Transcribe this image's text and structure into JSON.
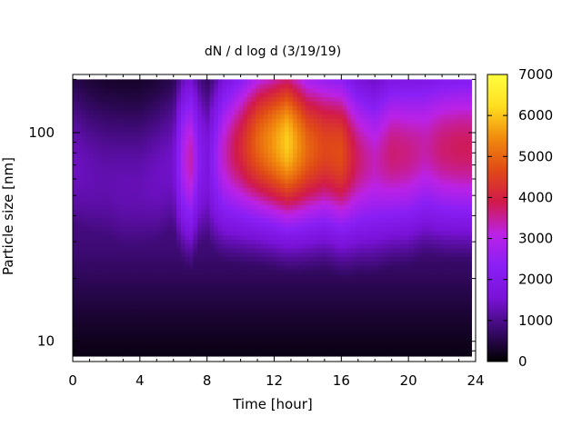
{
  "chart_data": {
    "type": "heatmap",
    "title": "dN / d log d (3/19/19)",
    "xlabel": "Time [hour]",
    "ylabel": "Particle size [nm]",
    "xlim": [
      0,
      24
    ],
    "ylim": [
      8,
      190
    ],
    "yscale": "log",
    "x_ticks": [
      0,
      4,
      8,
      12,
      16,
      20,
      24
    ],
    "y_ticks": [
      10,
      100
    ],
    "grid": false,
    "colorbar": {
      "range": [
        0,
        7000
      ],
      "ticks": [
        0,
        1000,
        2000,
        3000,
        4000,
        5000,
        6000,
        7000
      ],
      "colormap": [
        "#000000",
        "#3a0a6e",
        "#7a12d8",
        "#8a1ff5",
        "#bb22e6",
        "#d11a4a",
        "#e04a16",
        "#f18a0d",
        "#ffde1f",
        "#ffff40"
      ]
    },
    "model_rows": [
      {
        "time": 0.0,
        "peak_nm": 70,
        "amplitude": 1400
      },
      {
        "time": 1.0,
        "peak_nm": 62,
        "amplitude": 1300
      },
      {
        "time": 2.0,
        "peak_nm": 58,
        "amplitude": 1250
      },
      {
        "time": 3.0,
        "peak_nm": 55,
        "amplitude": 1300
      },
      {
        "time": 4.0,
        "peak_nm": 55,
        "amplitude": 1300
      },
      {
        "time": 5.0,
        "peak_nm": 60,
        "amplitude": 1400
      },
      {
        "time": 6.0,
        "peak_nm": 70,
        "amplitude": 1450
      },
      {
        "time": 6.5,
        "peak_nm": 75,
        "amplitude": 2800
      },
      {
        "time": 7.0,
        "peak_nm": 75,
        "amplitude": 3500
      },
      {
        "time": 7.5,
        "peak_nm": 75,
        "amplitude": 2200
      },
      {
        "time": 8.0,
        "peak_nm": 70,
        "amplitude": 1700
      },
      {
        "time": 9.0,
        "peak_nm": 80,
        "amplitude": 3300
      },
      {
        "time": 10.0,
        "peak_nm": 85,
        "amplitude": 4100
      },
      {
        "time": 11.0,
        "peak_nm": 90,
        "amplitude": 5000
      },
      {
        "time": 12.0,
        "peak_nm": 90,
        "amplitude": 5600
      },
      {
        "time": 12.8,
        "peak_nm": 90,
        "amplitude": 6100
      },
      {
        "time": 14.0,
        "peak_nm": 85,
        "amplitude": 5000
      },
      {
        "time": 15.0,
        "peak_nm": 85,
        "amplitude": 4600
      },
      {
        "time": 16.0,
        "peak_nm": 80,
        "amplitude": 4700
      },
      {
        "time": 17.0,
        "peak_nm": 75,
        "amplitude": 3700
      },
      {
        "time": 18.0,
        "peak_nm": 72,
        "amplitude": 3300
      },
      {
        "time": 19.0,
        "peak_nm": 80,
        "amplitude": 3700
      },
      {
        "time": 20.0,
        "peak_nm": 80,
        "amplitude": 3600
      },
      {
        "time": 21.0,
        "peak_nm": 85,
        "amplitude": 3400
      },
      {
        "time": 22.0,
        "peak_nm": 85,
        "amplitude": 3700
      },
      {
        "time": 23.0,
        "peak_nm": 85,
        "amplitude": 3800
      },
      {
        "time": 23.7,
        "peak_nm": 85,
        "amplitude": 3800
      }
    ]
  }
}
